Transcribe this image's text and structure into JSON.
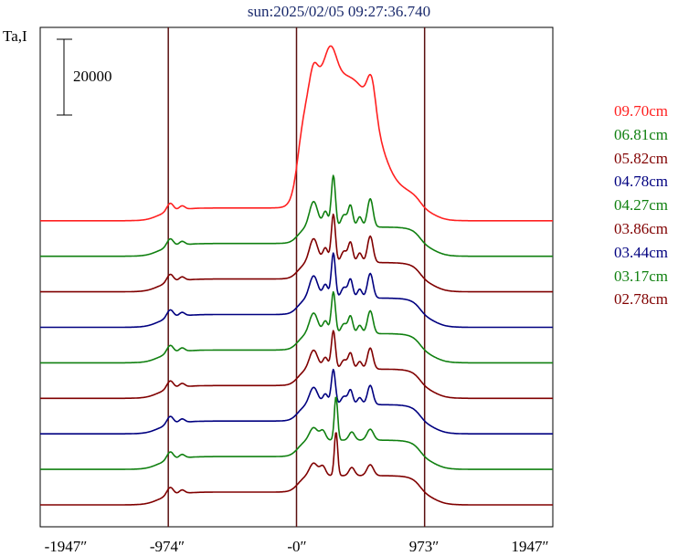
{
  "title": "sun:2025/02/05 09:27:36.740",
  "ylabel": "Ta,I",
  "scale_bar_label": "20000",
  "colors": {
    "red": "#ff2020",
    "green": "#108010",
    "maroon": "#800000",
    "navy": "#000080"
  },
  "chart_data": {
    "type": "line",
    "title": "sun:2025/02/05 09:27:36.740",
    "ylabel": "Ta,I",
    "xlabel": "",
    "x_ticks": [
      "-1947″",
      "-974″",
      "-0″",
      "973″",
      "1947″"
    ],
    "x_tick_values": [
      -1947,
      -974,
      0,
      973,
      1947
    ],
    "xlim": [
      -1947,
      1947
    ],
    "vertical_lines_at": [
      -974,
      0,
      973
    ],
    "scale_bar": {
      "value": 20000,
      "label": "20000"
    },
    "series": [
      {
        "name": "09.70cm",
        "color": "#ff2020",
        "offset": 8,
        "shape": "broad"
      },
      {
        "name": "06.81cm",
        "color": "#108010",
        "offset": 7,
        "shape": "mid"
      },
      {
        "name": "05.82cm",
        "color": "#800000",
        "offset": 6,
        "shape": "mid"
      },
      {
        "name": "04.78cm",
        "color": "#000080",
        "offset": 5,
        "shape": "mid"
      },
      {
        "name": "04.27cm",
        "color": "#108010",
        "offset": 4,
        "shape": "mid"
      },
      {
        "name": "03.86cm",
        "color": "#800000",
        "offset": 3,
        "shape": "mid"
      },
      {
        "name": "03.44cm",
        "color": "#000080",
        "offset": 2,
        "shape": "mid"
      },
      {
        "name": "03.17cm",
        "color": "#108010",
        "offset": 1,
        "shape": "narrow"
      },
      {
        "name": "02.78cm",
        "color": "#800000",
        "offset": 0,
        "shape": "narrow"
      }
    ]
  }
}
